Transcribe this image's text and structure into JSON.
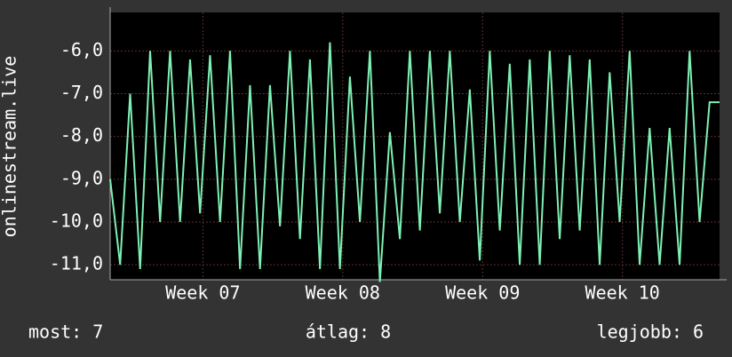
{
  "chart_data": {
    "type": "line",
    "y_label": "onlinestream.live",
    "x": [
      0,
      0.5,
      1,
      1.5,
      2,
      2.5,
      3,
      3.5,
      4,
      4.5,
      5,
      5.5,
      6,
      6.5,
      7,
      7.5,
      8,
      8.5,
      9,
      9.5,
      10,
      10.5,
      11,
      11.5,
      12,
      12.5,
      13,
      13.5,
      14,
      14.5,
      15,
      15.5,
      16,
      16.5,
      17,
      17.5,
      18,
      18.5,
      19,
      19.5,
      20,
      20.5,
      21,
      21.5,
      22,
      22.5,
      23,
      23.5,
      24,
      24.5,
      25,
      25.5,
      26,
      26.5,
      27,
      27.5,
      28,
      28.5,
      29,
      29.5,
      30,
      30.5
    ],
    "series": [
      {
        "name": "onlinestream.live",
        "color": "#7ff0b4",
        "values": [
          -9,
          -11,
          -7,
          -11.1,
          -6,
          -10,
          -6,
          -10,
          -6.2,
          -9.8,
          -6.1,
          -10,
          -6,
          -11.1,
          -6.8,
          -11.1,
          -6.8,
          -10.1,
          -6,
          -10.4,
          -6.2,
          -11.1,
          -5.8,
          -11.1,
          -6.6,
          -10,
          -6,
          -11.4,
          -7.9,
          -10.4,
          -6,
          -10.2,
          -6,
          -9.8,
          -6,
          -10,
          -6.9,
          -10.9,
          -6,
          -10.2,
          -6.3,
          -11,
          -6.2,
          -11,
          -6,
          -10.4,
          -6.1,
          -10.2,
          -6.2,
          -11,
          -6.5,
          -10,
          -6,
          -11,
          -7.8,
          -11,
          -7.8,
          -11,
          -6,
          -10,
          -7.2,
          -7.2
        ]
      }
    ],
    "xlim": [
      0,
      30.5
    ],
    "xticks": [
      {
        "value": 4.64,
        "label": "Week 07"
      },
      {
        "value": 11.64,
        "label": "Week 08"
      },
      {
        "value": 18.64,
        "label": "Week 09"
      },
      {
        "value": 25.64,
        "label": "Week 10"
      }
    ],
    "ylim": [
      -11.35,
      -5.1
    ],
    "yticks": [
      {
        "value": -11,
        "label": "-11,0"
      },
      {
        "value": -10,
        "label": "-10,0"
      },
      {
        "value": -9,
        "label": "-9,0"
      },
      {
        "value": -8,
        "label": "-8,0"
      },
      {
        "value": -7,
        "label": "-7,0"
      },
      {
        "value": -6,
        "label": "-6,0"
      }
    ],
    "grid": true,
    "footer": [
      "most: 7",
      "átlag: 8",
      "legjobb: 6"
    ]
  }
}
